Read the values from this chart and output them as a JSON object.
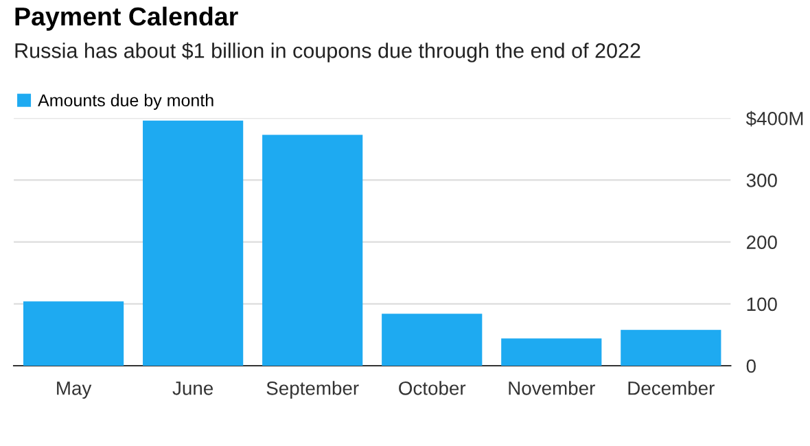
{
  "chart_data": {
    "type": "bar",
    "title": "Payment Calendar",
    "subtitle": "Russia has about $1 billion in coupons due through the end of 2022",
    "categories": [
      "May",
      "June",
      "September",
      "October",
      "November",
      "December"
    ],
    "series": [
      {
        "name": "Amounts due by month",
        "color": "#1eaaf1",
        "values": [
          104,
          396,
          373,
          84,
          44,
          58
        ]
      }
    ],
    "ylim": [
      0,
      400
    ],
    "yticks": [
      0,
      100,
      200,
      300,
      {
        "value": 400,
        "label": "$400M"
      }
    ],
    "grid": "y",
    "legend": "top left"
  }
}
